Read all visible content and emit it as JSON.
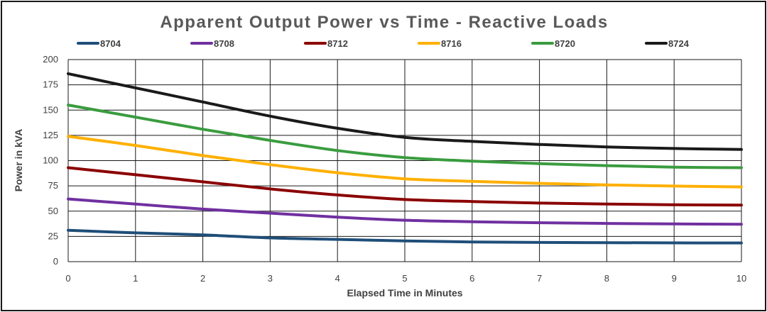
{
  "chart_data": {
    "type": "line",
    "title": "Apparent Output Power vs Time - Reactive Loads",
    "xlabel": "Elapsed Time in Minutes",
    "ylabel": "Power in kVA",
    "xlim": [
      0,
      10
    ],
    "ylim": [
      0,
      200
    ],
    "x_ticks": [
      "0",
      "1",
      "2",
      "3",
      "4",
      "5",
      "6",
      "7",
      "8",
      "9",
      "10"
    ],
    "y_ticks": [
      "0",
      "25",
      "50",
      "75",
      "100",
      "125",
      "150",
      "175",
      "200"
    ],
    "grid": "major gridlines on both axes",
    "legend_position": "top",
    "x": [
      0,
      1,
      2,
      3,
      4,
      5,
      6,
      7,
      8,
      9,
      10
    ],
    "series": [
      {
        "name": "8704",
        "color": "#1f4e79",
        "values": [
          31,
          28.5,
          26.5,
          23.5,
          22,
          20.5,
          19.5,
          19,
          18.8,
          18.6,
          18.5
        ]
      },
      {
        "name": "8708",
        "color": "#7030a0",
        "values": [
          62,
          57,
          52,
          48,
          44,
          41,
          39.5,
          38.5,
          37.8,
          37.3,
          37
        ]
      },
      {
        "name": "8712",
        "color": "#8b0000",
        "values": [
          93,
          86,
          79,
          72,
          66,
          61.5,
          59.5,
          58,
          57,
          56.3,
          56
        ]
      },
      {
        "name": "8716",
        "color": "#ffb000",
        "values": [
          124,
          115,
          105,
          96,
          88,
          82,
          79.5,
          77.5,
          76,
          74.8,
          74
        ]
      },
      {
        "name": "8720",
        "color": "#3a9c3f",
        "values": [
          155,
          143,
          131,
          120,
          110,
          103,
          99.5,
          97,
          95,
          93.5,
          93
        ]
      },
      {
        "name": "8724",
        "color": "#1a1a1a",
        "values": [
          186,
          172,
          158,
          144,
          132,
          123,
          119,
          116,
          113.5,
          112,
          111
        ]
      }
    ]
  }
}
